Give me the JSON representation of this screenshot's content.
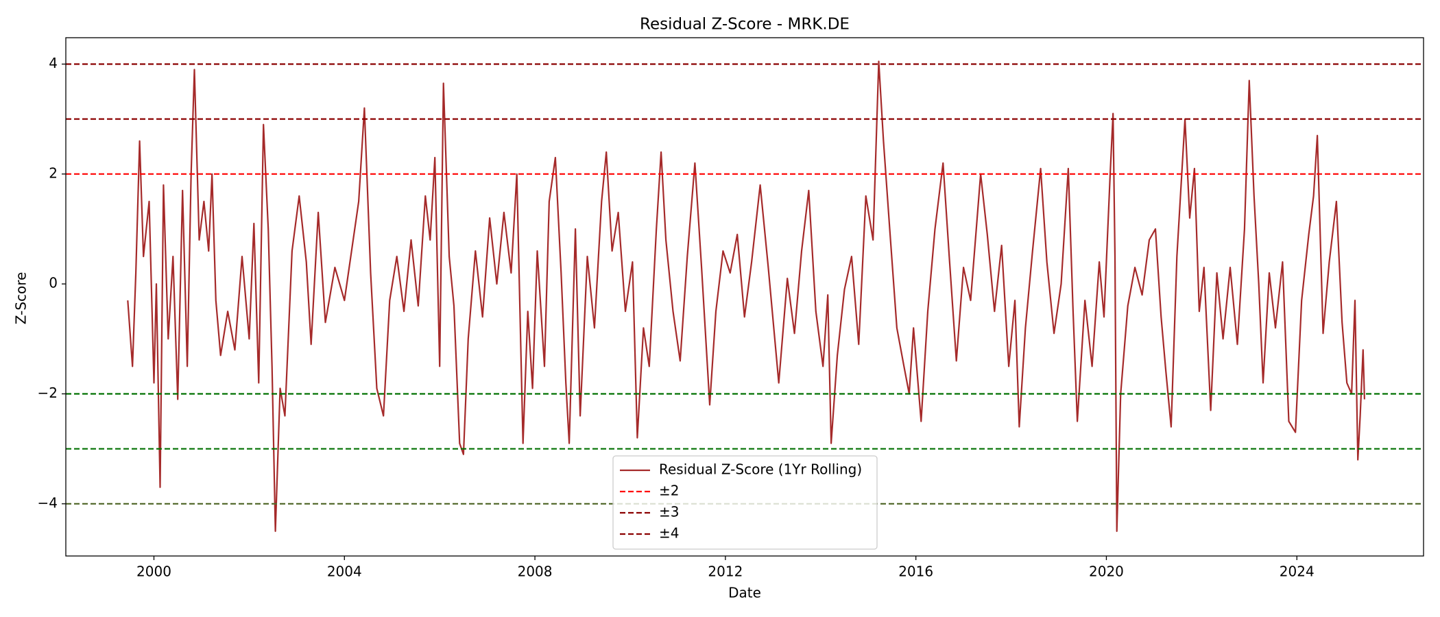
{
  "chart_data": {
    "type": "line",
    "title": "Residual Z-Score - MRK.DE",
    "xlabel": "Date",
    "ylabel": "Z-Score",
    "xlim": [
      1998.15,
      2026.66
    ],
    "ylim": [
      -4.95,
      4.48
    ],
    "xticks": [
      2000,
      2004,
      2008,
      2012,
      2016,
      2020,
      2024
    ],
    "yticks": [
      {
        "value": -4,
        "label": "−4"
      },
      {
        "value": -2,
        "label": "−2"
      },
      0,
      2,
      4
    ],
    "series": [
      {
        "name": "Residual Z-Score (1Yr Rolling)",
        "color": "#a52a2a",
        "x": [
          1999.45,
          1999.55,
          1999.62,
          1999.7,
          1999.78,
          1999.9,
          2000.0,
          2000.05,
          2000.13,
          2000.2,
          2000.3,
          2000.4,
          2000.5,
          2000.6,
          2000.7,
          2000.78,
          2000.85,
          2000.95,
          2001.05,
          2001.15,
          2001.22,
          2001.3,
          2001.4,
          2001.55,
          2001.7,
          2001.85,
          2002.0,
          2002.1,
          2002.2,
          2002.3,
          2002.4,
          2002.48,
          2002.55,
          2002.65,
          2002.75,
          2002.9,
          2003.05,
          2003.2,
          2003.3,
          2003.45,
          2003.6,
          2003.8,
          2004.0,
          2004.15,
          2004.3,
          2004.42,
          2004.55,
          2004.68,
          2004.82,
          2004.95,
          2005.1,
          2005.25,
          2005.4,
          2005.55,
          2005.7,
          2005.8,
          2005.9,
          2006.0,
          2006.08,
          2006.2,
          2006.3,
          2006.42,
          2006.5,
          2006.6,
          2006.75,
          2006.9,
          2007.05,
          2007.2,
          2007.35,
          2007.5,
          2007.62,
          2007.75,
          2007.85,
          2007.95,
          2008.05,
          2008.2,
          2008.3,
          2008.43,
          2008.55,
          2008.65,
          2008.72,
          2008.85,
          2008.95,
          2009.1,
          2009.25,
          2009.4,
          2009.5,
          2009.62,
          2009.75,
          2009.9,
          2010.05,
          2010.15,
          2010.28,
          2010.4,
          2010.55,
          2010.65,
          2010.75,
          2010.9,
          2011.05,
          2011.2,
          2011.36,
          2011.5,
          2011.67,
          2011.8,
          2011.95,
          2012.1,
          2012.25,
          2012.4,
          2012.55,
          2012.73,
          2012.9,
          2013.12,
          2013.3,
          2013.45,
          2013.6,
          2013.75,
          2013.9,
          2014.05,
          2014.15,
          2014.22,
          2014.35,
          2014.5,
          2014.65,
          2014.8,
          2014.95,
          2015.1,
          2015.22,
          2015.32,
          2015.45,
          2015.6,
          2015.75,
          2015.86,
          2015.95,
          2016.11,
          2016.25,
          2016.4,
          2016.57,
          2016.7,
          2016.85,
          2017.0,
          2017.15,
          2017.36,
          2017.5,
          2017.65,
          2017.8,
          2017.95,
          2018.08,
          2018.17,
          2018.3,
          2018.45,
          2018.62,
          2018.75,
          2018.9,
          2019.05,
          2019.2,
          2019.3,
          2019.39,
          2019.55,
          2019.7,
          2019.85,
          2019.95,
          2020.08,
          2020.14,
          2020.18,
          2020.22,
          2020.3,
          2020.45,
          2020.6,
          2020.75,
          2020.9,
          2021.03,
          2021.15,
          2021.25,
          2021.36,
          2021.48,
          2021.65,
          2021.75,
          2021.85,
          2021.95,
          2022.05,
          2022.19,
          2022.32,
          2022.45,
          2022.6,
          2022.75,
          2022.9,
          2023.0,
          2023.1,
          2023.2,
          2023.29,
          2023.42,
          2023.55,
          2023.7,
          2023.83,
          2023.97,
          2024.1,
          2024.25,
          2024.35,
          2024.43,
          2024.55,
          2024.68,
          2024.83,
          2024.95,
          2025.05,
          2025.15,
          2025.22,
          2025.28,
          2025.33,
          2025.39,
          2025.42
        ],
        "values": [
          -0.3,
          -1.5,
          0.2,
          2.6,
          0.5,
          1.5,
          -1.8,
          0.0,
          -3.7,
          1.8,
          -1.0,
          0.5,
          -2.1,
          1.7,
          -1.5,
          2.0,
          3.9,
          0.8,
          1.5,
          0.6,
          2.0,
          -0.3,
          -1.3,
          -0.5,
          -1.2,
          0.5,
          -1.0,
          1.1,
          -1.8,
          2.9,
          1.0,
          -1.5,
          -4.5,
          -1.9,
          -2.4,
          0.6,
          1.6,
          0.4,
          -1.1,
          1.3,
          -0.7,
          0.3,
          -0.3,
          0.6,
          1.5,
          3.2,
          0.2,
          -1.9,
          -2.4,
          -0.3,
          0.5,
          -0.5,
          0.8,
          -0.4,
          1.6,
          0.8,
          2.3,
          -1.5,
          3.65,
          0.5,
          -0.4,
          -2.9,
          -3.1,
          -1.0,
          0.6,
          -0.6,
          1.2,
          0.0,
          1.3,
          0.2,
          2.0,
          -2.9,
          -0.5,
          -1.9,
          0.6,
          -1.5,
          1.5,
          2.3,
          0.2,
          -1.8,
          -2.9,
          1.0,
          -2.4,
          0.5,
          -0.8,
          1.5,
          2.4,
          0.6,
          1.3,
          -0.5,
          0.4,
          -2.8,
          -0.8,
          -1.5,
          1.0,
          2.4,
          0.8,
          -0.5,
          -1.4,
          0.5,
          2.2,
          0.3,
          -2.2,
          -0.5,
          0.6,
          0.2,
          0.9,
          -0.6,
          0.4,
          1.8,
          0.3,
          -1.8,
          0.1,
          -0.9,
          0.6,
          1.7,
          -0.5,
          -1.5,
          -0.2,
          -2.9,
          -1.3,
          -0.1,
          0.5,
          -1.1,
          1.6,
          0.8,
          4.05,
          2.6,
          1.0,
          -0.8,
          -1.5,
          -2.0,
          -0.8,
          -2.5,
          -0.5,
          1.0,
          2.2,
          0.5,
          -1.4,
          0.3,
          -0.3,
          2.0,
          0.9,
          -0.5,
          0.7,
          -1.5,
          -0.3,
          -2.6,
          -0.8,
          0.6,
          2.1,
          0.4,
          -0.9,
          0.0,
          2.1,
          -0.5,
          -2.5,
          -0.3,
          -1.5,
          0.4,
          -0.6,
          2.0,
          3.1,
          0.5,
          -4.5,
          -2.0,
          -0.4,
          0.3,
          -0.2,
          0.8,
          1.0,
          -0.6,
          -1.6,
          -2.6,
          0.5,
          3.0,
          1.2,
          2.1,
          -0.5,
          0.3,
          -2.3,
          0.2,
          -1.0,
          0.3,
          -1.1,
          1.0,
          3.7,
          1.6,
          0.0,
          -1.8,
          0.2,
          -0.8,
          0.4,
          -2.5,
          -2.7,
          -0.3,
          0.9,
          1.6,
          2.7,
          -0.9,
          0.4,
          1.5,
          -0.7,
          -1.8,
          -2.0,
          -0.3,
          -3.2,
          -2.4,
          -1.2,
          -2.1
        ]
      }
    ],
    "thresholds": [
      {
        "name": "±2",
        "levels": [
          2,
          -2
        ],
        "colors": [
          "#ff0000",
          "#007000"
        ]
      },
      {
        "name": "±3",
        "levels": [
          3,
          -3
        ],
        "colors": [
          "#8b0000",
          "#007000"
        ]
      },
      {
        "name": "±4",
        "levels": [
          4,
          -4
        ],
        "colors": [
          "#8b0000",
          "#556b2f"
        ]
      }
    ],
    "legend": "lower center"
  }
}
